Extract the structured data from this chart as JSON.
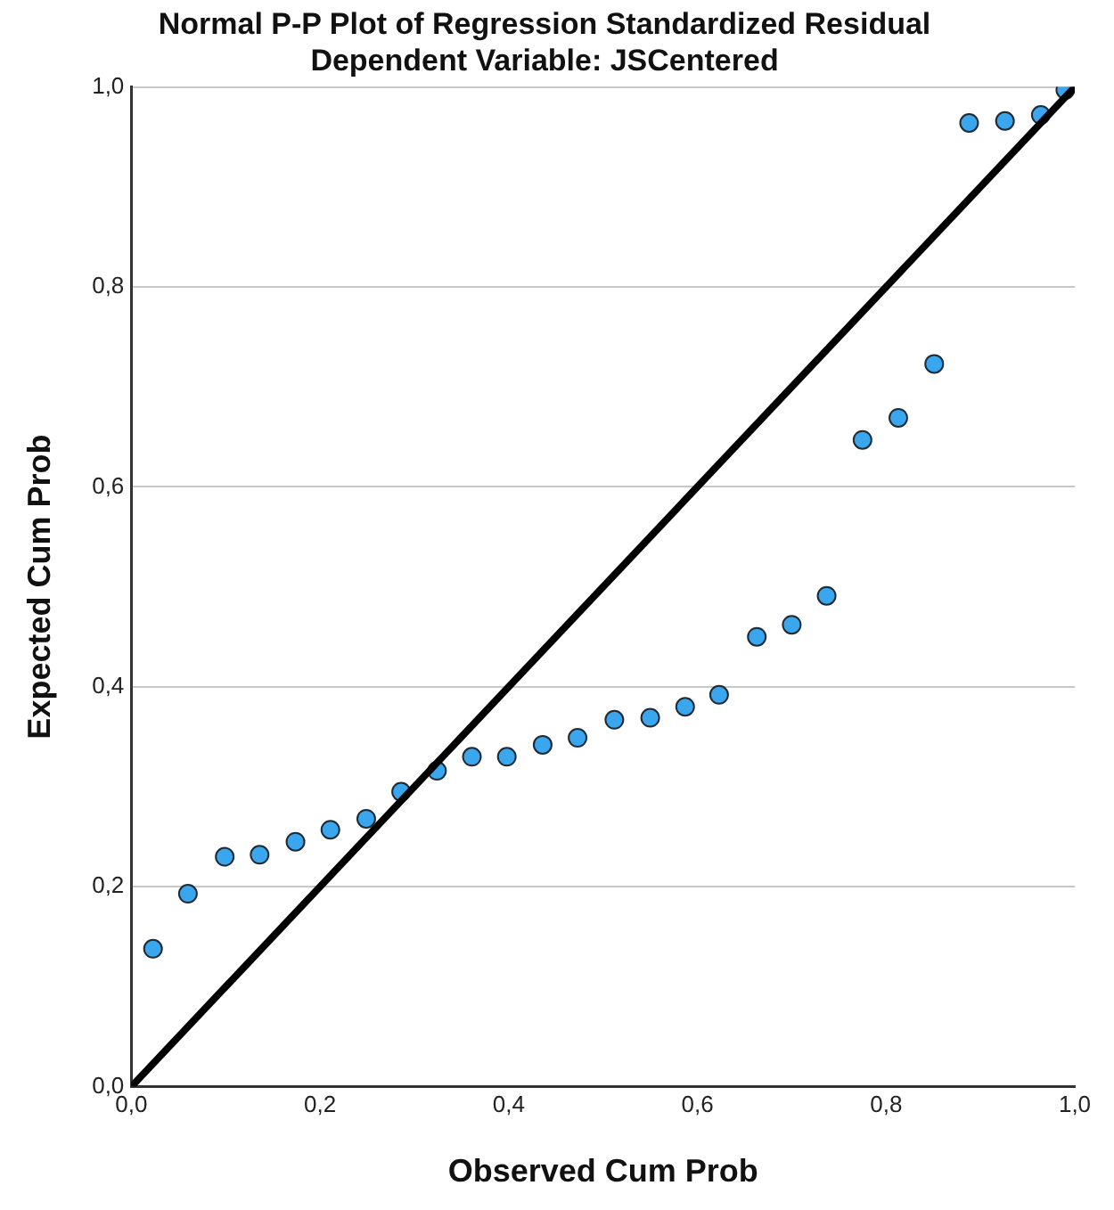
{
  "chart_data": {
    "type": "scatter",
    "title": "Normal P-P Plot of Regression Standardized Residual",
    "subtitle": "Dependent Variable: JSCentered",
    "xlabel": "Observed Cum Prob",
    "ylabel": "Expected Cum Prob",
    "series": [
      {
        "type": "scatter",
        "color": "#3aa6ee",
        "x": [
          0.023,
          0.06,
          0.099,
          0.136,
          0.174,
          0.211,
          0.249,
          0.286,
          0.324,
          0.361,
          0.398,
          0.436,
          0.473,
          0.512,
          0.55,
          0.587,
          0.623,
          0.663,
          0.7,
          0.737,
          0.775,
          0.813,
          0.851,
          0.888,
          0.926,
          0.964,
          0.99
        ],
        "values": [
          0.138,
          0.193,
          0.23,
          0.232,
          0.245,
          0.257,
          0.268,
          0.295,
          0.316,
          0.33,
          0.33,
          0.342,
          0.349,
          0.367,
          0.369,
          0.38,
          0.392,
          0.45,
          0.462,
          0.491,
          0.647,
          0.669,
          0.723,
          0.964,
          0.966,
          0.972,
          0.997
        ]
      },
      {
        "type": "line",
        "color": "#000000",
        "marker": "none",
        "x": [
          0,
          1
        ],
        "values": [
          0,
          1
        ]
      }
    ],
    "xlim": [
      0,
      1
    ],
    "ylim": [
      0,
      1
    ],
    "xticks": [
      {
        "value": 0,
        "label": "0,0"
      },
      {
        "value": 0.2,
        "label": "0,2"
      },
      {
        "value": 0.4,
        "label": "0,4"
      },
      {
        "value": 0.6,
        "label": "0,6"
      },
      {
        "value": 0.8,
        "label": "0,8"
      },
      {
        "value": 1,
        "label": "1,0"
      }
    ],
    "yticks": [
      {
        "value": 0,
        "label": "0,0"
      },
      {
        "value": 0.2,
        "label": "0,2"
      },
      {
        "value": 0.4,
        "label": "0,4"
      },
      {
        "value": 0.6,
        "label": "0,6"
      },
      {
        "value": 0.8,
        "label": "0,8"
      },
      {
        "value": 1,
        "label": "1,0"
      }
    ],
    "grid": "y",
    "marker": "circle",
    "legend": false
  }
}
